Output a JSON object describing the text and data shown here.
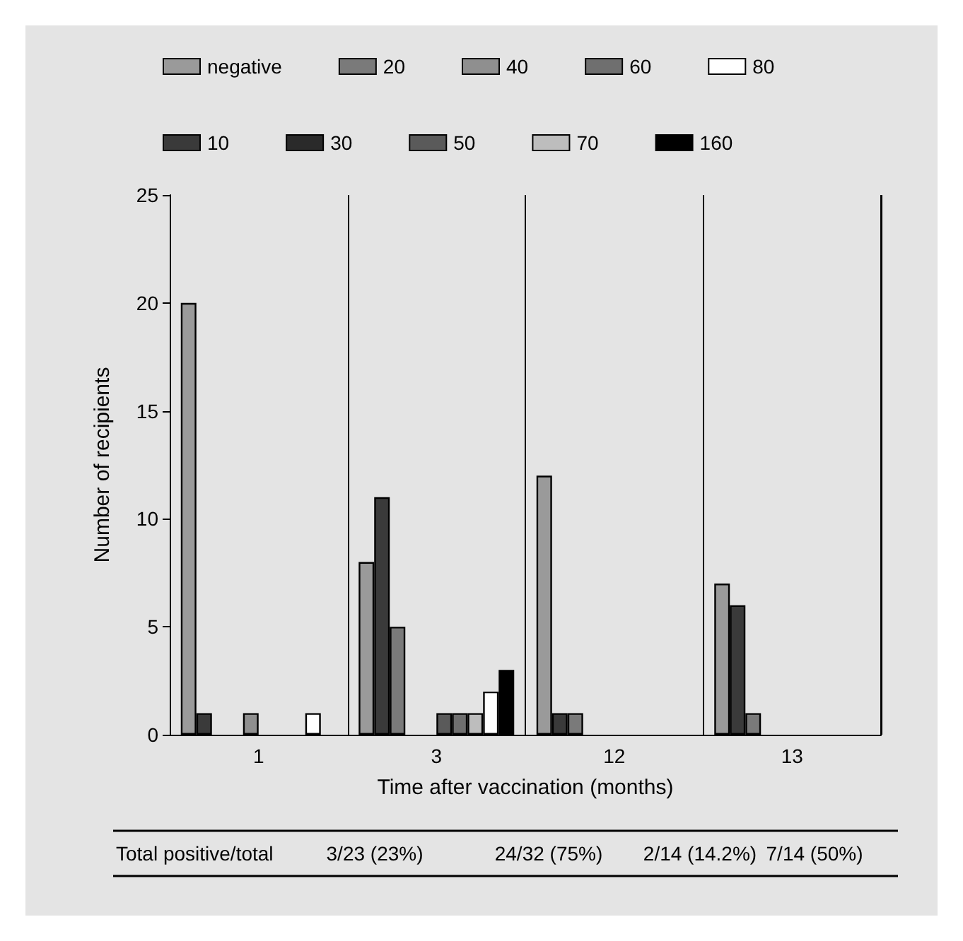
{
  "chart_data": {
    "type": "bar",
    "xlabel": "Time after vaccination (months)",
    "ylabel": "Number of recipients",
    "categories": [
      "1",
      "3",
      "12",
      "13"
    ],
    "series": [
      {
        "name": "negative",
        "color": "#9a9a9a",
        "values": [
          20,
          8,
          12,
          7
        ]
      },
      {
        "name": "10",
        "color": "#3a3a3a",
        "values": [
          1,
          11,
          1,
          6
        ]
      },
      {
        "name": "20",
        "color": "#7a7a7a",
        "values": [
          0,
          5,
          1,
          1
        ]
      },
      {
        "name": "30",
        "color": "#2a2a2a",
        "values": [
          0,
          0,
          0,
          0
        ]
      },
      {
        "name": "40",
        "color": "#8f8f8f",
        "values": [
          1,
          0,
          0,
          0
        ]
      },
      {
        "name": "50",
        "color": "#5a5a5a",
        "values": [
          0,
          1,
          0,
          0
        ]
      },
      {
        "name": "60",
        "color": "#6f6f6f",
        "values": [
          0,
          1,
          0,
          0
        ]
      },
      {
        "name": "70",
        "color": "#bdbdbd",
        "values": [
          0,
          1,
          0,
          0
        ]
      },
      {
        "name": "80",
        "color": "#ffffff",
        "values": [
          1,
          2,
          0,
          0
        ]
      },
      {
        "name": "160",
        "color": "#000000",
        "values": [
          0,
          3,
          0,
          0
        ]
      }
    ],
    "ylim": [
      0,
      25
    ],
    "yticks": [
      0,
      5,
      10,
      15,
      20,
      25
    ],
    "grid": "x",
    "legend": "top",
    "annotations": [
      "Total positive/total",
      "3/23 (23%)",
      "24/32 (75%)",
      "2/14 (14.2%)",
      "7/14 (50%)"
    ]
  }
}
